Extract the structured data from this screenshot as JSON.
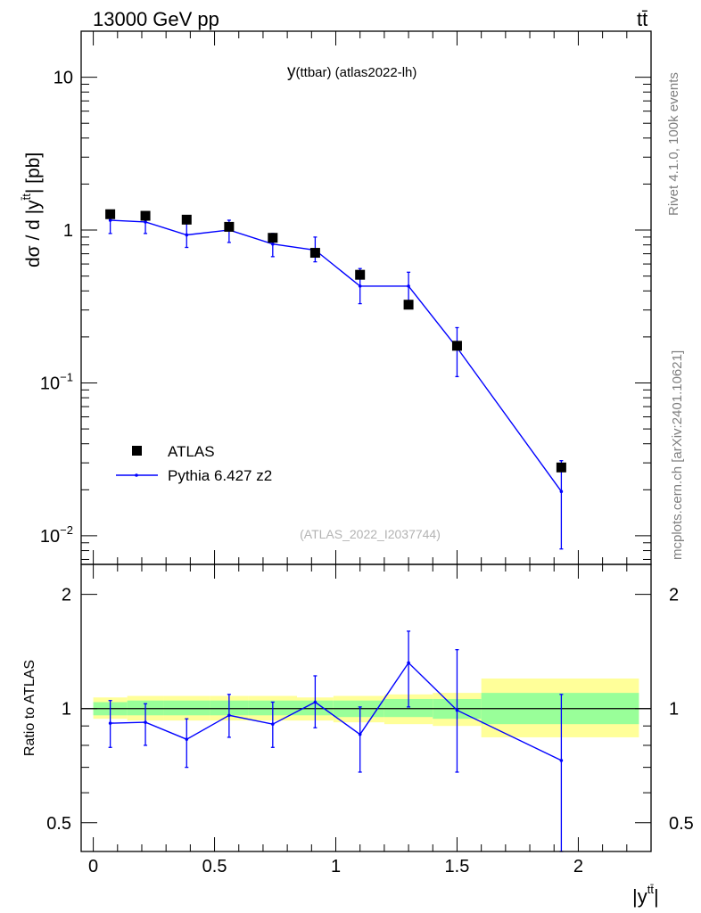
{
  "header": {
    "energy_label": "13000 GeV pp",
    "process_label": "tt̄"
  },
  "side_labels": {
    "rivet": "Rivet 4.1.0,  100k events",
    "mcplots": "mcplots.cern.ch [arXiv:2401.10621]"
  },
  "chart_data": [
    {
      "type": "scatter",
      "panel": "main",
      "title": "y(ttbar) (atlas2022-lh)",
      "title_main": "y",
      "title_sub": "(ttbar) (atlas2022-lh)",
      "ylabel": "dσ / d |y",
      "ylabel_sup": "t̄t",
      "ylabel_tail": "| [pb]",
      "yscale": "log",
      "ylim": [
        0.0065,
        20
      ],
      "xlim": [
        -0.05,
        2.3
      ],
      "ytick_labels": [
        {
          "value": 10,
          "label": "10"
        },
        {
          "value": 1,
          "label": "1"
        },
        {
          "value": 0.1,
          "label": "10",
          "sup": "−1"
        },
        {
          "value": 0.01,
          "label": "10",
          "sup": "−2"
        }
      ],
      "watermark": "(ATLAS_2022_I2037744)",
      "legend": {
        "position": "bottom-left",
        "entries": [
          {
            "name": "ATLAS",
            "marker": "square",
            "color": "#000000"
          },
          {
            "name": "Pythia 6.427 z2",
            "marker": "line",
            "color": "#0000ff"
          }
        ]
      },
      "series": [
        {
          "name": "ATLAS",
          "x": [
            0.07,
            0.215,
            0.385,
            0.56,
            0.74,
            0.915,
            1.1,
            1.3,
            1.5,
            1.93
          ],
          "y": [
            1.27,
            1.24,
            1.17,
            1.05,
            0.89,
            0.71,
            0.51,
            0.325,
            0.175,
            0.028
          ]
        },
        {
          "name": "Pythia 6.427 z2",
          "bin_edges": [
            0.0,
            0.14,
            0.29,
            0.48,
            0.64,
            0.84,
            0.99,
            1.2,
            1.4,
            1.6,
            2.25
          ],
          "x": [
            0.07,
            0.215,
            0.385,
            0.56,
            0.74,
            0.915,
            1.1,
            1.3,
            1.5,
            1.93
          ],
          "y": [
            1.16,
            1.13,
            0.93,
            1.0,
            0.81,
            0.74,
            0.43,
            0.43,
            0.17,
            0.0195
          ],
          "yerr_low": [
            0.95,
            0.95,
            0.77,
            0.83,
            0.67,
            0.62,
            0.33,
            0.33,
            0.11,
            0.0082
          ],
          "yerr_high": [
            1.3,
            1.27,
            1.1,
            1.16,
            0.95,
            0.9,
            0.56,
            0.53,
            0.23,
            0.031
          ]
        }
      ]
    },
    {
      "type": "line",
      "panel": "ratio",
      "ylabel": "Ratio to ATLAS",
      "xlabel": "|y",
      "xlabel_sup": "tt̄",
      "xlabel_tail": "|",
      "yscale": "log",
      "ylim": [
        0.42,
        2.4
      ],
      "ytick_labels": [
        {
          "value": 2,
          "label": "2"
        },
        {
          "value": 1,
          "label": "1"
        },
        {
          "value": 0.5,
          "label": "0.5"
        }
      ],
      "xtick_labels": [
        {
          "value": 0,
          "label": "0"
        },
        {
          "value": 0.5,
          "label": "0.5"
        },
        {
          "value": 1,
          "label": "1"
        },
        {
          "value": 1.5,
          "label": "1.5"
        },
        {
          "value": 2,
          "label": "2"
        }
      ],
      "bands": {
        "bin_edges": [
          0.0,
          0.14,
          0.29,
          0.48,
          0.64,
          0.84,
          0.99,
          1.2,
          1.4,
          1.6,
          2.25
        ],
        "yellow_low": [
          0.94,
          0.93,
          0.93,
          0.93,
          0.93,
          0.93,
          0.92,
          0.91,
          0.9,
          0.84
        ],
        "yellow_high": [
          1.07,
          1.08,
          1.08,
          1.08,
          1.08,
          1.07,
          1.08,
          1.09,
          1.1,
          1.2
        ],
        "green_low": [
          0.96,
          0.96,
          0.96,
          0.96,
          0.96,
          0.96,
          0.95,
          0.95,
          0.94,
          0.91
        ],
        "green_high": [
          1.04,
          1.05,
          1.05,
          1.05,
          1.05,
          1.05,
          1.05,
          1.06,
          1.06,
          1.1
        ]
      },
      "series": [
        {
          "name": "Pythia 6.427 z2 / ATLAS",
          "x": [
            0.07,
            0.215,
            0.385,
            0.56,
            0.74,
            0.915,
            1.1,
            1.3,
            1.5,
            1.93
          ],
          "y": [
            0.915,
            0.92,
            0.83,
            0.96,
            0.91,
            1.04,
            0.855,
            1.32,
            0.99,
            0.73
          ],
          "yerr_low": [
            0.79,
            0.8,
            0.7,
            0.84,
            0.79,
            0.89,
            0.68,
            1.01,
            0.68,
            0.42
          ],
          "yerr_high": [
            1.05,
            1.03,
            0.94,
            1.09,
            1.04,
            1.22,
            1.01,
            1.6,
            1.43,
            1.09
          ]
        }
      ]
    }
  ]
}
